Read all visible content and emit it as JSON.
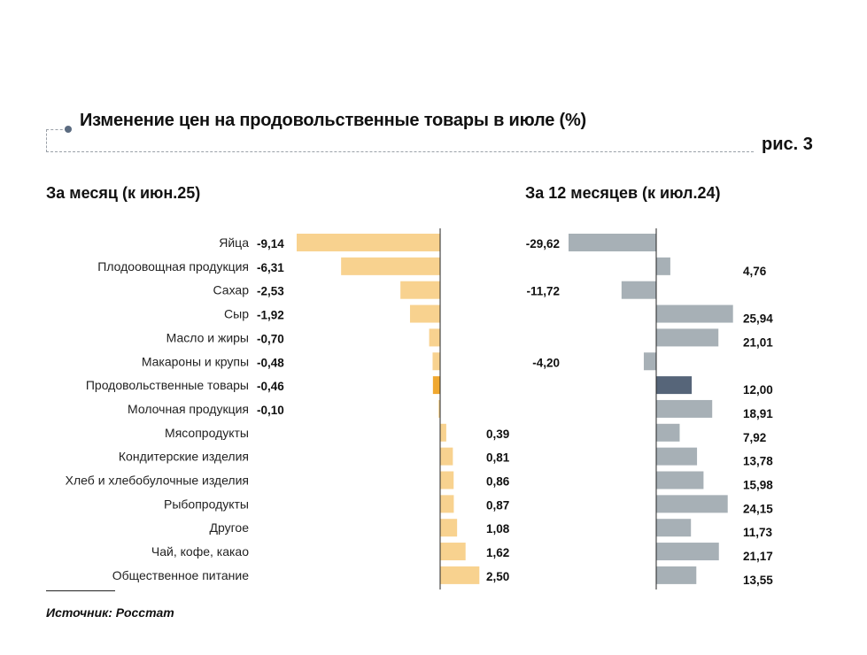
{
  "header": {
    "title": "Изменение цен на продовольственные товары в июле (%)",
    "figure_label": "рис. 3"
  },
  "footer": {
    "source": "Источник: Росстат"
  },
  "colors": {
    "monthly_bar": "#f8d28f",
    "monthly_highlight": "#f0a830",
    "annual_bar": "#a7b0b6",
    "annual_highlight": "#566579",
    "frame": "#9aa0a8"
  },
  "chart_data": [
    {
      "type": "bar",
      "orientation": "horizontal",
      "title": "За месяц (к июн.25)",
      "categories": [
        "Яйца",
        "Плодоовощная продукция",
        "Сахар",
        "Сыр",
        "Масло и жиры",
        "Макароны и крупы",
        "Продовольственные товары",
        "Молочная продукция",
        "Мясопродукты",
        "Кондитерские изделия",
        "Хлеб и хлебобулочные изделия",
        "Рыбопродукты",
        "Другое",
        "Чай, кофе, какао",
        "Общественное питание"
      ],
      "values": [
        -9.14,
        -6.31,
        -2.53,
        -1.92,
        -0.7,
        -0.48,
        -0.46,
        -0.1,
        0.39,
        0.81,
        0.86,
        0.87,
        1.08,
        1.62,
        2.5
      ],
      "labels": [
        "-9,14",
        "-6,31",
        "-2,53",
        "-1,92",
        "-0,70",
        "-0,48",
        "-0,46",
        "-0,10",
        "0,39",
        "0,81",
        "0,86",
        "0,87",
        "1,08",
        "1,62",
        "2,50"
      ],
      "highlight": "Продовольственные товары",
      "xlabel": "",
      "ylabel": "",
      "xlim": [
        -9.14,
        2.5
      ],
      "grid": false
    },
    {
      "type": "bar",
      "orientation": "horizontal",
      "title": "За 12 месяцев (к июл.24)",
      "categories": [
        "Яйца",
        "Плодоовощная продукция",
        "Сахар",
        "Сыр",
        "Масло и жиры",
        "Макароны и крупы",
        "Продовольственные товары",
        "Молочная продукция",
        "Мясопродукты",
        "Кондитерские изделия",
        "Хлеб и хлебобулочные изделия",
        "Рыбопродукты",
        "Другое",
        "Чай, кофе, какао",
        "Общественное питание"
      ],
      "values": [
        -29.62,
        4.76,
        -11.72,
        25.94,
        21.01,
        -4.2,
        12.0,
        18.91,
        7.92,
        13.78,
        15.98,
        24.15,
        11.73,
        21.17,
        13.55
      ],
      "labels": [
        "-29,62",
        "4,76",
        "-11,72",
        "25,94",
        "21,01",
        "-4,20",
        "12,00",
        "18,91",
        "7,92",
        "13,78",
        "15,98",
        "24,15",
        "11,73",
        "21,17",
        "13,55"
      ],
      "highlight": "Продовольственные товары",
      "xlabel": "",
      "ylabel": "",
      "xlim": [
        -29.62,
        25.94
      ],
      "grid": false
    }
  ]
}
